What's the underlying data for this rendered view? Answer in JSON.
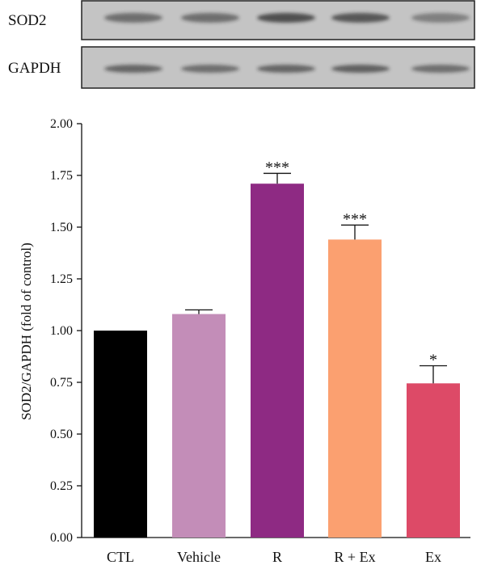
{
  "blot": {
    "rows": [
      {
        "label": "SOD2",
        "band_intensity": [
          0.55,
          0.55,
          0.75,
          0.7,
          0.45
        ]
      },
      {
        "label": "GAPDH",
        "band_intensity": [
          0.6,
          0.55,
          0.6,
          0.65,
          0.55
        ]
      }
    ],
    "membrane_color": "#c4c4c4",
    "band_color": "#2a2a2a"
  },
  "chart_data": {
    "type": "bar",
    "categories": [
      "CTL",
      "Vehicle",
      "R",
      "R + Ex",
      "Ex"
    ],
    "values": [
      1.0,
      1.08,
      1.71,
      1.44,
      0.745
    ],
    "errors": [
      0.0,
      0.02,
      0.05,
      0.07,
      0.085
    ],
    "significance": [
      "",
      "",
      "***",
      "***",
      "*"
    ],
    "colors": [
      "#000000",
      "#c38db8",
      "#8e2a83",
      "#fba070",
      "#dd4a67"
    ],
    "ylabel": "SOD2/GAPDH (fold of control)",
    "xlabel": "",
    "title": "",
    "ylim": [
      0,
      2.0
    ],
    "yticks": [
      "0.00",
      "0.25",
      "0.50",
      "0.75",
      "1.00",
      "1.25",
      "1.50",
      "1.75",
      "2.00"
    ],
    "grid": false,
    "legend": "none"
  }
}
